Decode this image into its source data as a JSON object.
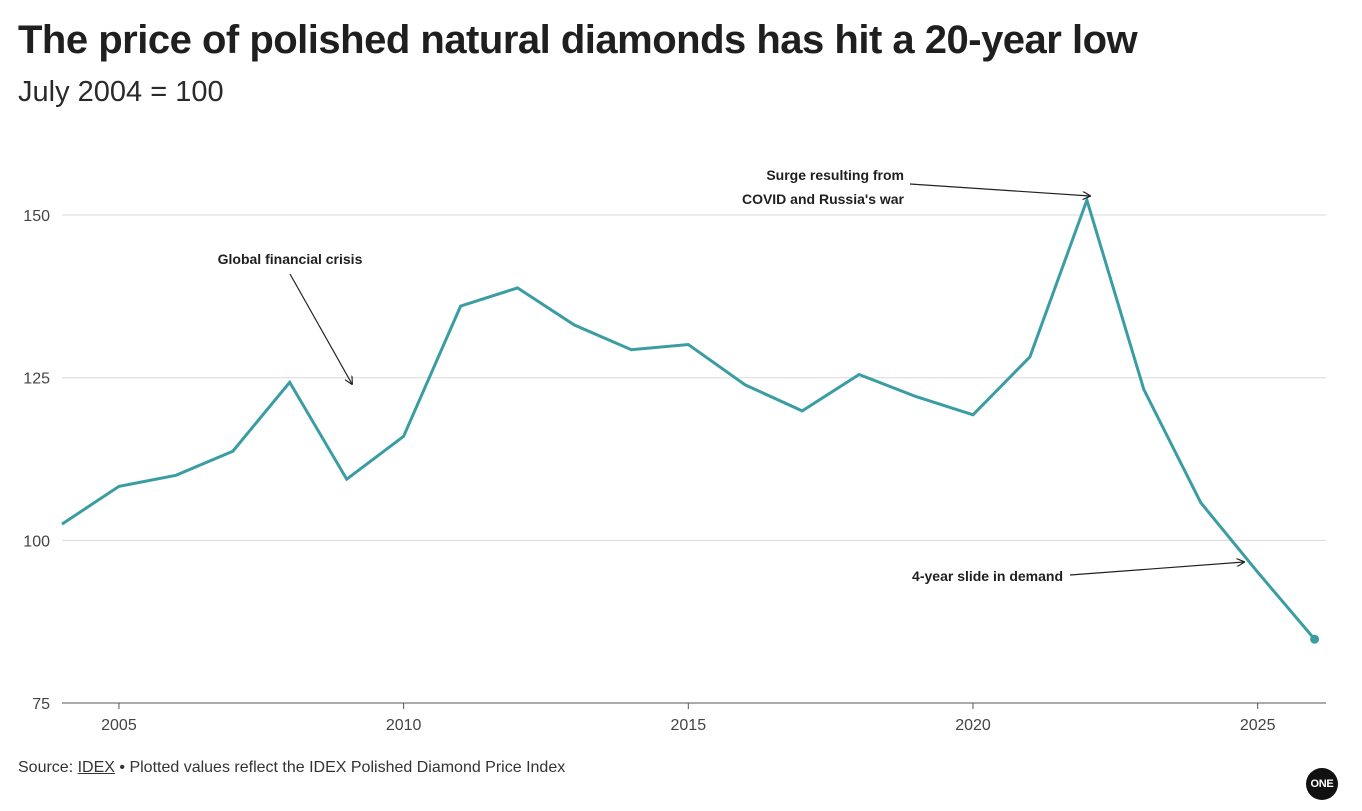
{
  "header": {
    "title": "The price of polished natural diamonds has hit a 20-year low",
    "subtitle": "July 2004 = 100"
  },
  "footer": {
    "source_label": "Source:",
    "source_link": "IDEX",
    "source_note": "• Plotted values reflect the IDEX Polished Diamond Price Index",
    "logo_text": "ONE"
  },
  "colors": {
    "line": "#3a9da3",
    "grid": "#d9d9d9",
    "axis": "#555555"
  },
  "chart_data": {
    "type": "line",
    "title": "The price of polished natural diamonds has hit a 20-year low",
    "subtitle": "July 2004 = 100",
    "xlabel": "",
    "ylabel": "",
    "xlim": [
      2004,
      2026.2
    ],
    "ylim": [
      75,
      160
    ],
    "x_ticks": [
      2005,
      2010,
      2015,
      2020,
      2025
    ],
    "y_ticks": [
      75,
      100,
      125,
      150
    ],
    "grid": true,
    "series": [
      {
        "name": "IDEX Polished Diamond Price Index",
        "x": [
          2004,
          2005,
          2006,
          2007,
          2008,
          2009,
          2010,
          2011,
          2012,
          2013,
          2014,
          2015,
          2016,
          2017,
          2018,
          2019,
          2020,
          2021,
          2022,
          2023,
          2024,
          2025,
          2026
        ],
        "values": [
          102.5,
          108.3,
          110,
          113.7,
          124.3,
          109.4,
          116,
          136,
          138.8,
          133.1,
          129.3,
          130.1,
          123.9,
          119.9,
          125.5,
          122.1,
          119.3,
          128.2,
          152.3,
          123.2,
          105.8,
          95.1,
          84.8
        ]
      }
    ],
    "annotations": [
      {
        "lines": [
          "Global financial crisis"
        ],
        "x": 2009,
        "y": 120
      },
      {
        "lines": [
          "Surge resulting from",
          "COVID and Russia's war"
        ],
        "x": 2022.3,
        "y": 152
      },
      {
        "lines": [
          "4-year slide in demand"
        ],
        "x": 2024.9,
        "y": 96
      }
    ]
  }
}
